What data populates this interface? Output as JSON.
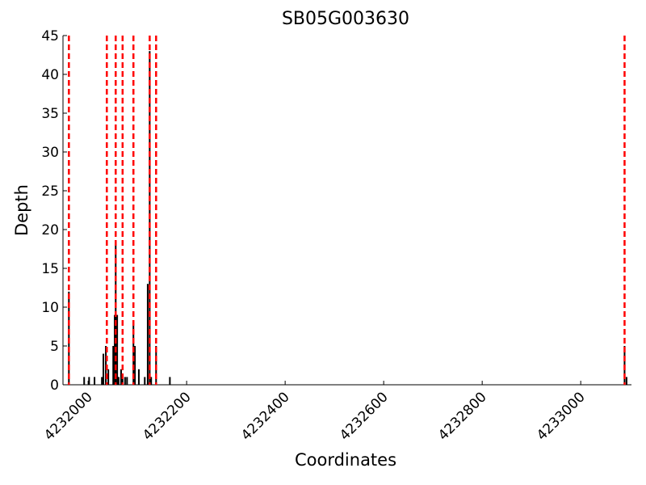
{
  "chart_data": {
    "type": "bar",
    "title": "SB05G003630",
    "xlabel": "Coordinates",
    "ylabel": "Depth",
    "x": [
      4231961,
      4231992,
      4232002,
      4232013,
      4232028,
      4232031,
      4232036,
      4232041,
      4232051,
      4232054,
      4232056,
      4232059,
      4232062,
      4232067,
      4232070,
      4232075,
      4232079,
      4232092,
      4232095,
      4232103,
      4232115,
      4232121,
      4232125,
      4232128,
      4232138,
      4232166,
      4233089,
      4233093
    ],
    "values": [
      12,
      1,
      1,
      1,
      1,
      4,
      5,
      2,
      5,
      9,
      18,
      9,
      1,
      2,
      1,
      1,
      1,
      8,
      5,
      2,
      1,
      13,
      43,
      1,
      5,
      1,
      5,
      1
    ],
    "color": "#000000",
    "vlines": [
      4231961,
      4232038,
      4232056,
      4232070,
      4232092,
      4232125,
      4232138,
      4233089
    ],
    "vline_color": "#ff0000",
    "xlim": [
      4231949,
      4233103
    ],
    "xticks": [
      4232000,
      4232200,
      4232400,
      4232600,
      4232800,
      4233000
    ],
    "ylim": [
      0,
      45
    ],
    "yticks": [
      0,
      5,
      10,
      15,
      20,
      25,
      30,
      35,
      40,
      45
    ]
  }
}
